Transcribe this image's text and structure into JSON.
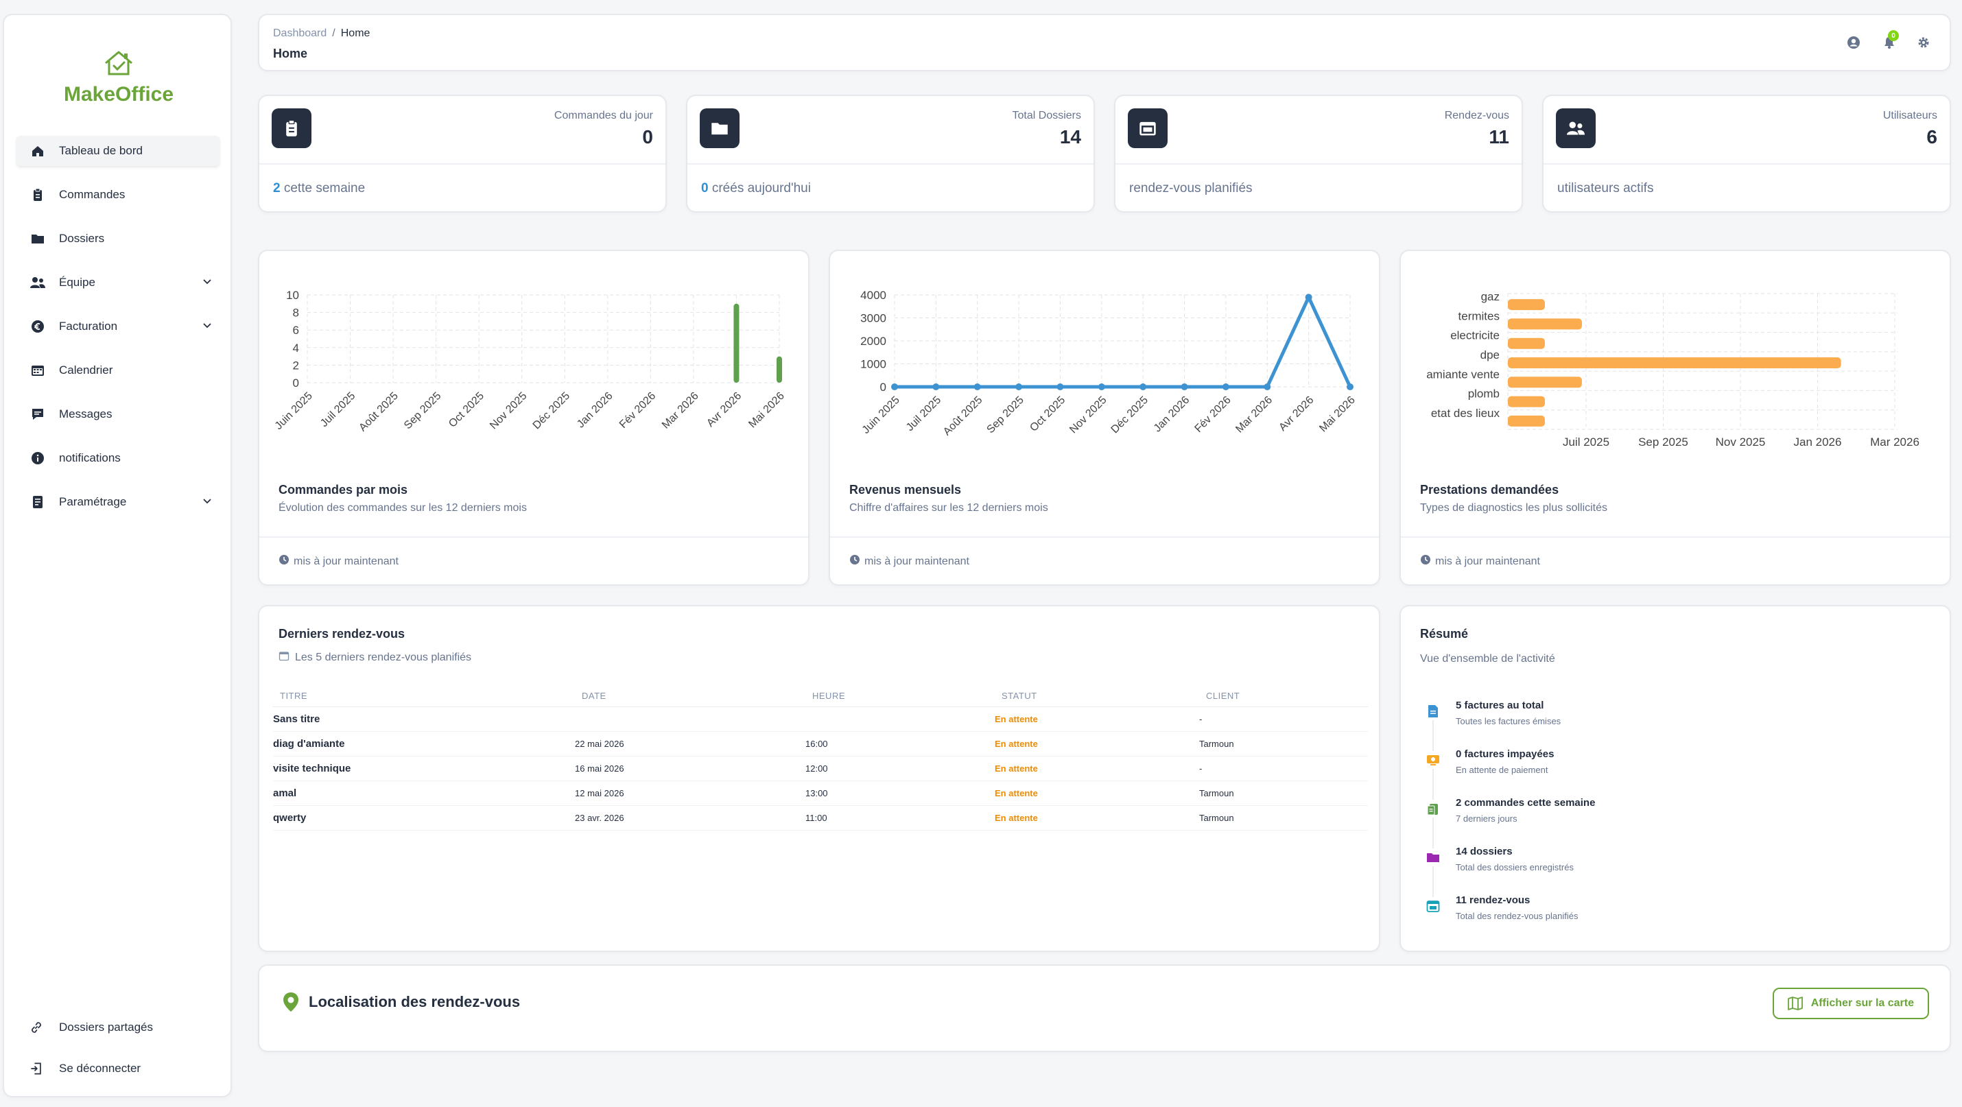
{
  "brand": {
    "name": "MakeOffice",
    "color": "#6ba53a"
  },
  "sidebar": {
    "items": [
      {
        "label": "Tableau de bord",
        "icon": "home-icon",
        "active": true,
        "expandable": false
      },
      {
        "label": "Commandes",
        "icon": "clipboard-icon",
        "active": false,
        "expandable": false
      },
      {
        "label": "Dossiers",
        "icon": "folder-icon",
        "active": false,
        "expandable": false
      },
      {
        "label": "Équipe",
        "icon": "users-icon",
        "active": false,
        "expandable": true
      },
      {
        "label": "Facturation",
        "icon": "euro-icon",
        "active": false,
        "expandable": true
      },
      {
        "label": "Calendrier",
        "icon": "calendar-icon",
        "active": false,
        "expandable": false
      },
      {
        "label": "Messages",
        "icon": "chat-icon",
        "active": false,
        "expandable": false
      },
      {
        "label": "notifications",
        "icon": "info-icon",
        "active": false,
        "expandable": false
      },
      {
        "label": "Paramétrage",
        "icon": "document-icon",
        "active": false,
        "expandable": true
      }
    ],
    "bottom": [
      {
        "label": "Dossiers partagés",
        "icon": "link-icon"
      },
      {
        "label": "Se déconnecter",
        "icon": "logout-icon"
      }
    ]
  },
  "header": {
    "breadcrumb": [
      "Dashboard",
      "Home"
    ],
    "title": "Home",
    "notification_count": "0"
  },
  "stats": [
    {
      "label": "Commandes du jour",
      "value": "0",
      "footer_num": "2",
      "footer_text": " cette semaine",
      "icon": "clipboard-icon"
    },
    {
      "label": "Total Dossiers",
      "value": "14",
      "footer_num": "0",
      "footer_text": " créés aujourd'hui",
      "icon": "folder-icon"
    },
    {
      "label": "Rendez-vous",
      "value": "11",
      "footer_num": "",
      "footer_text": "rendez-vous planifiés",
      "icon": "calendar-icon"
    },
    {
      "label": "Utilisateurs",
      "value": "6",
      "footer_num": "",
      "footer_text": "utilisateurs actifs",
      "icon": "users-icon"
    }
  ],
  "charts_meta": [
    {
      "title": "Commandes par mois",
      "subtitle": "Évolution des commandes sur les 12 derniers mois",
      "footer": "mis à jour maintenant"
    },
    {
      "title": "Revenus mensuels",
      "subtitle": "Chiffre d'affaires sur les 12 derniers mois",
      "footer": "mis à jour maintenant"
    },
    {
      "title": "Prestations demandées",
      "subtitle": "Types de diagnostics les plus sollicités",
      "footer": "mis à jour maintenant"
    }
  ],
  "chart_data": [
    {
      "type": "bar",
      "title": "Commandes par mois",
      "categories": [
        "Juin 2025",
        "Juil 2025",
        "Août 2025",
        "Sep 2025",
        "Oct 2025",
        "Nov 2025",
        "Déc 2025",
        "Jan 2026",
        "Fév 2026",
        "Mar 2026",
        "Avr 2026",
        "Mai 2026"
      ],
      "values": [
        0,
        0,
        0,
        0,
        0,
        0,
        0,
        0,
        0,
        0,
        9,
        3
      ],
      "ylim": [
        0,
        10
      ],
      "yticks": [
        0,
        2,
        4,
        6,
        8,
        10
      ],
      "color": "#5fa04e",
      "grid": true
    },
    {
      "type": "line",
      "title": "Revenus mensuels",
      "categories": [
        "Juin 2025",
        "Juil 2025",
        "Août 2025",
        "Sep 2025",
        "Oct 2025",
        "Nov 2025",
        "Déc 2025",
        "Jan 2026",
        "Fév 2026",
        "Mar 2026",
        "Avr 2026",
        "Mai 2026"
      ],
      "values": [
        0,
        0,
        0,
        0,
        0,
        0,
        0,
        0,
        0,
        0,
        3900,
        0
      ],
      "ylim": [
        0,
        4000
      ],
      "yticks": [
        0,
        1000,
        2000,
        3000,
        4000
      ],
      "color": "#3d92d2",
      "grid": true
    },
    {
      "type": "bar",
      "orientation": "horizontal",
      "title": "Prestations demandées",
      "categories": [
        "gaz",
        "termites",
        "electricite",
        "dpe",
        "amiante vente",
        "plomb",
        "etat des lieux"
      ],
      "x_ticks": [
        "Juil 2025",
        "Sep 2025",
        "Nov 2025",
        "Jan 2026",
        "Mar 2026"
      ],
      "values": [
        1,
        2,
        1,
        9,
        2,
        1,
        1
      ],
      "xlim": [
        0,
        10
      ],
      "color": "#fbac4f",
      "grid": true
    }
  ],
  "rdv": {
    "title": "Derniers rendez-vous",
    "subtitle": "Les 5 derniers rendez-vous planifiés",
    "columns": [
      "TITRE",
      "DATE",
      "HEURE",
      "STATUT",
      "CLIENT"
    ],
    "rows": [
      {
        "titre": "Sans titre",
        "date": "",
        "heure": "",
        "statut": "En attente",
        "client": "-"
      },
      {
        "titre": "diag d'amiante",
        "date": "22 mai 2026",
        "heure": "16:00",
        "statut": "En attente",
        "client": "Tarmoun"
      },
      {
        "titre": "visite technique",
        "date": "16 mai 2026",
        "heure": "12:00",
        "statut": "En attente",
        "client": "-"
      },
      {
        "titre": "amal",
        "date": "12 mai 2026",
        "heure": "13:00",
        "statut": "En attente",
        "client": "Tarmoun"
      },
      {
        "titre": "qwerty",
        "date": "23 avr. 2026",
        "heure": "11:00",
        "statut": "En attente",
        "client": "Tarmoun"
      }
    ]
  },
  "resume": {
    "title": "Résumé",
    "subtitle": "Vue d'ensemble de l'activité",
    "items": [
      {
        "title": "5 factures au total",
        "sub": "Toutes les factures émises",
        "icon": "invoice-icon",
        "color": "#3d92d2"
      },
      {
        "title": "0 factures impayées",
        "sub": "En attente de paiement",
        "icon": "payment-icon",
        "color": "#f5a623"
      },
      {
        "title": "2 commandes cette semaine",
        "sub": "7 derniers jours",
        "icon": "clipboard-icon",
        "color": "#5fa04e"
      },
      {
        "title": "14 dossiers",
        "sub": "Total des dossiers enregistrés",
        "icon": "folder-icon",
        "color": "#9c27b0"
      },
      {
        "title": "11 rendez-vous",
        "sub": "Total des rendez-vous planifiés",
        "icon": "calendar-icon",
        "color": "#17a2b8"
      }
    ]
  },
  "localisation": {
    "title": "Localisation des rendez-vous",
    "button": "Afficher sur la carte"
  }
}
